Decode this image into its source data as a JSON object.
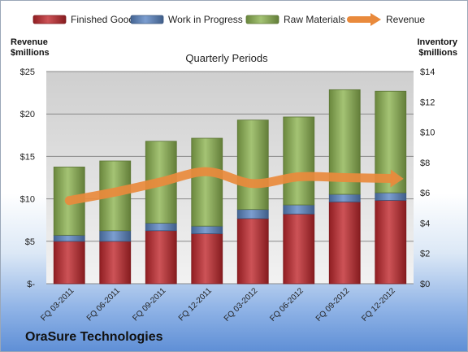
{
  "company": "OraSure Technologies",
  "chart_data": {
    "type": "bar",
    "title": "Quarterly Periods",
    "left_axis_label": [
      "Revenue",
      "$millions"
    ],
    "right_axis_label": [
      "Inventory",
      "$millions"
    ],
    "left_ticks": [
      "$-",
      "$5",
      "$10",
      "$15",
      "$20",
      "$25"
    ],
    "right_ticks": [
      "$0",
      "$2",
      "$4",
      "$6",
      "$8",
      "$10",
      "$12",
      "$14"
    ],
    "ylim_left": [
      0,
      25
    ],
    "ylim_right": [
      0,
      14
    ],
    "categories": [
      "FQ 03-2011",
      "FQ 06-2011",
      "FQ 09-2011",
      "FQ 12-2011",
      "FQ 03-2012",
      "FQ 06-2012",
      "FQ 09-2012",
      "FQ 12-2012"
    ],
    "stacked_axis": "right",
    "series": [
      {
        "name": "Finished Goods",
        "type": "bar",
        "color": "#c0282d",
        "values": [
          2.8,
          2.8,
          3.5,
          3.3,
          4.3,
          4.6,
          5.4,
          5.5
        ]
      },
      {
        "name": "Work in Progress",
        "type": "bar",
        "color": "#5b86c4",
        "values": [
          0.4,
          0.7,
          0.5,
          0.5,
          0.6,
          0.6,
          0.5,
          0.5
        ]
      },
      {
        "name": "Raw Materials",
        "type": "bar",
        "color": "#8db451",
        "values": [
          4.5,
          4.6,
          5.4,
          5.8,
          5.9,
          5.8,
          6.9,
          6.7
        ]
      },
      {
        "name": "Revenue",
        "type": "line",
        "axis": "left",
        "color": "#e98a3c",
        "values": [
          9.8,
          10.8,
          12.0,
          13.2,
          11.8,
          12.6,
          12.5,
          12.4
        ]
      }
    ],
    "legend_position": "top",
    "grid": true
  }
}
